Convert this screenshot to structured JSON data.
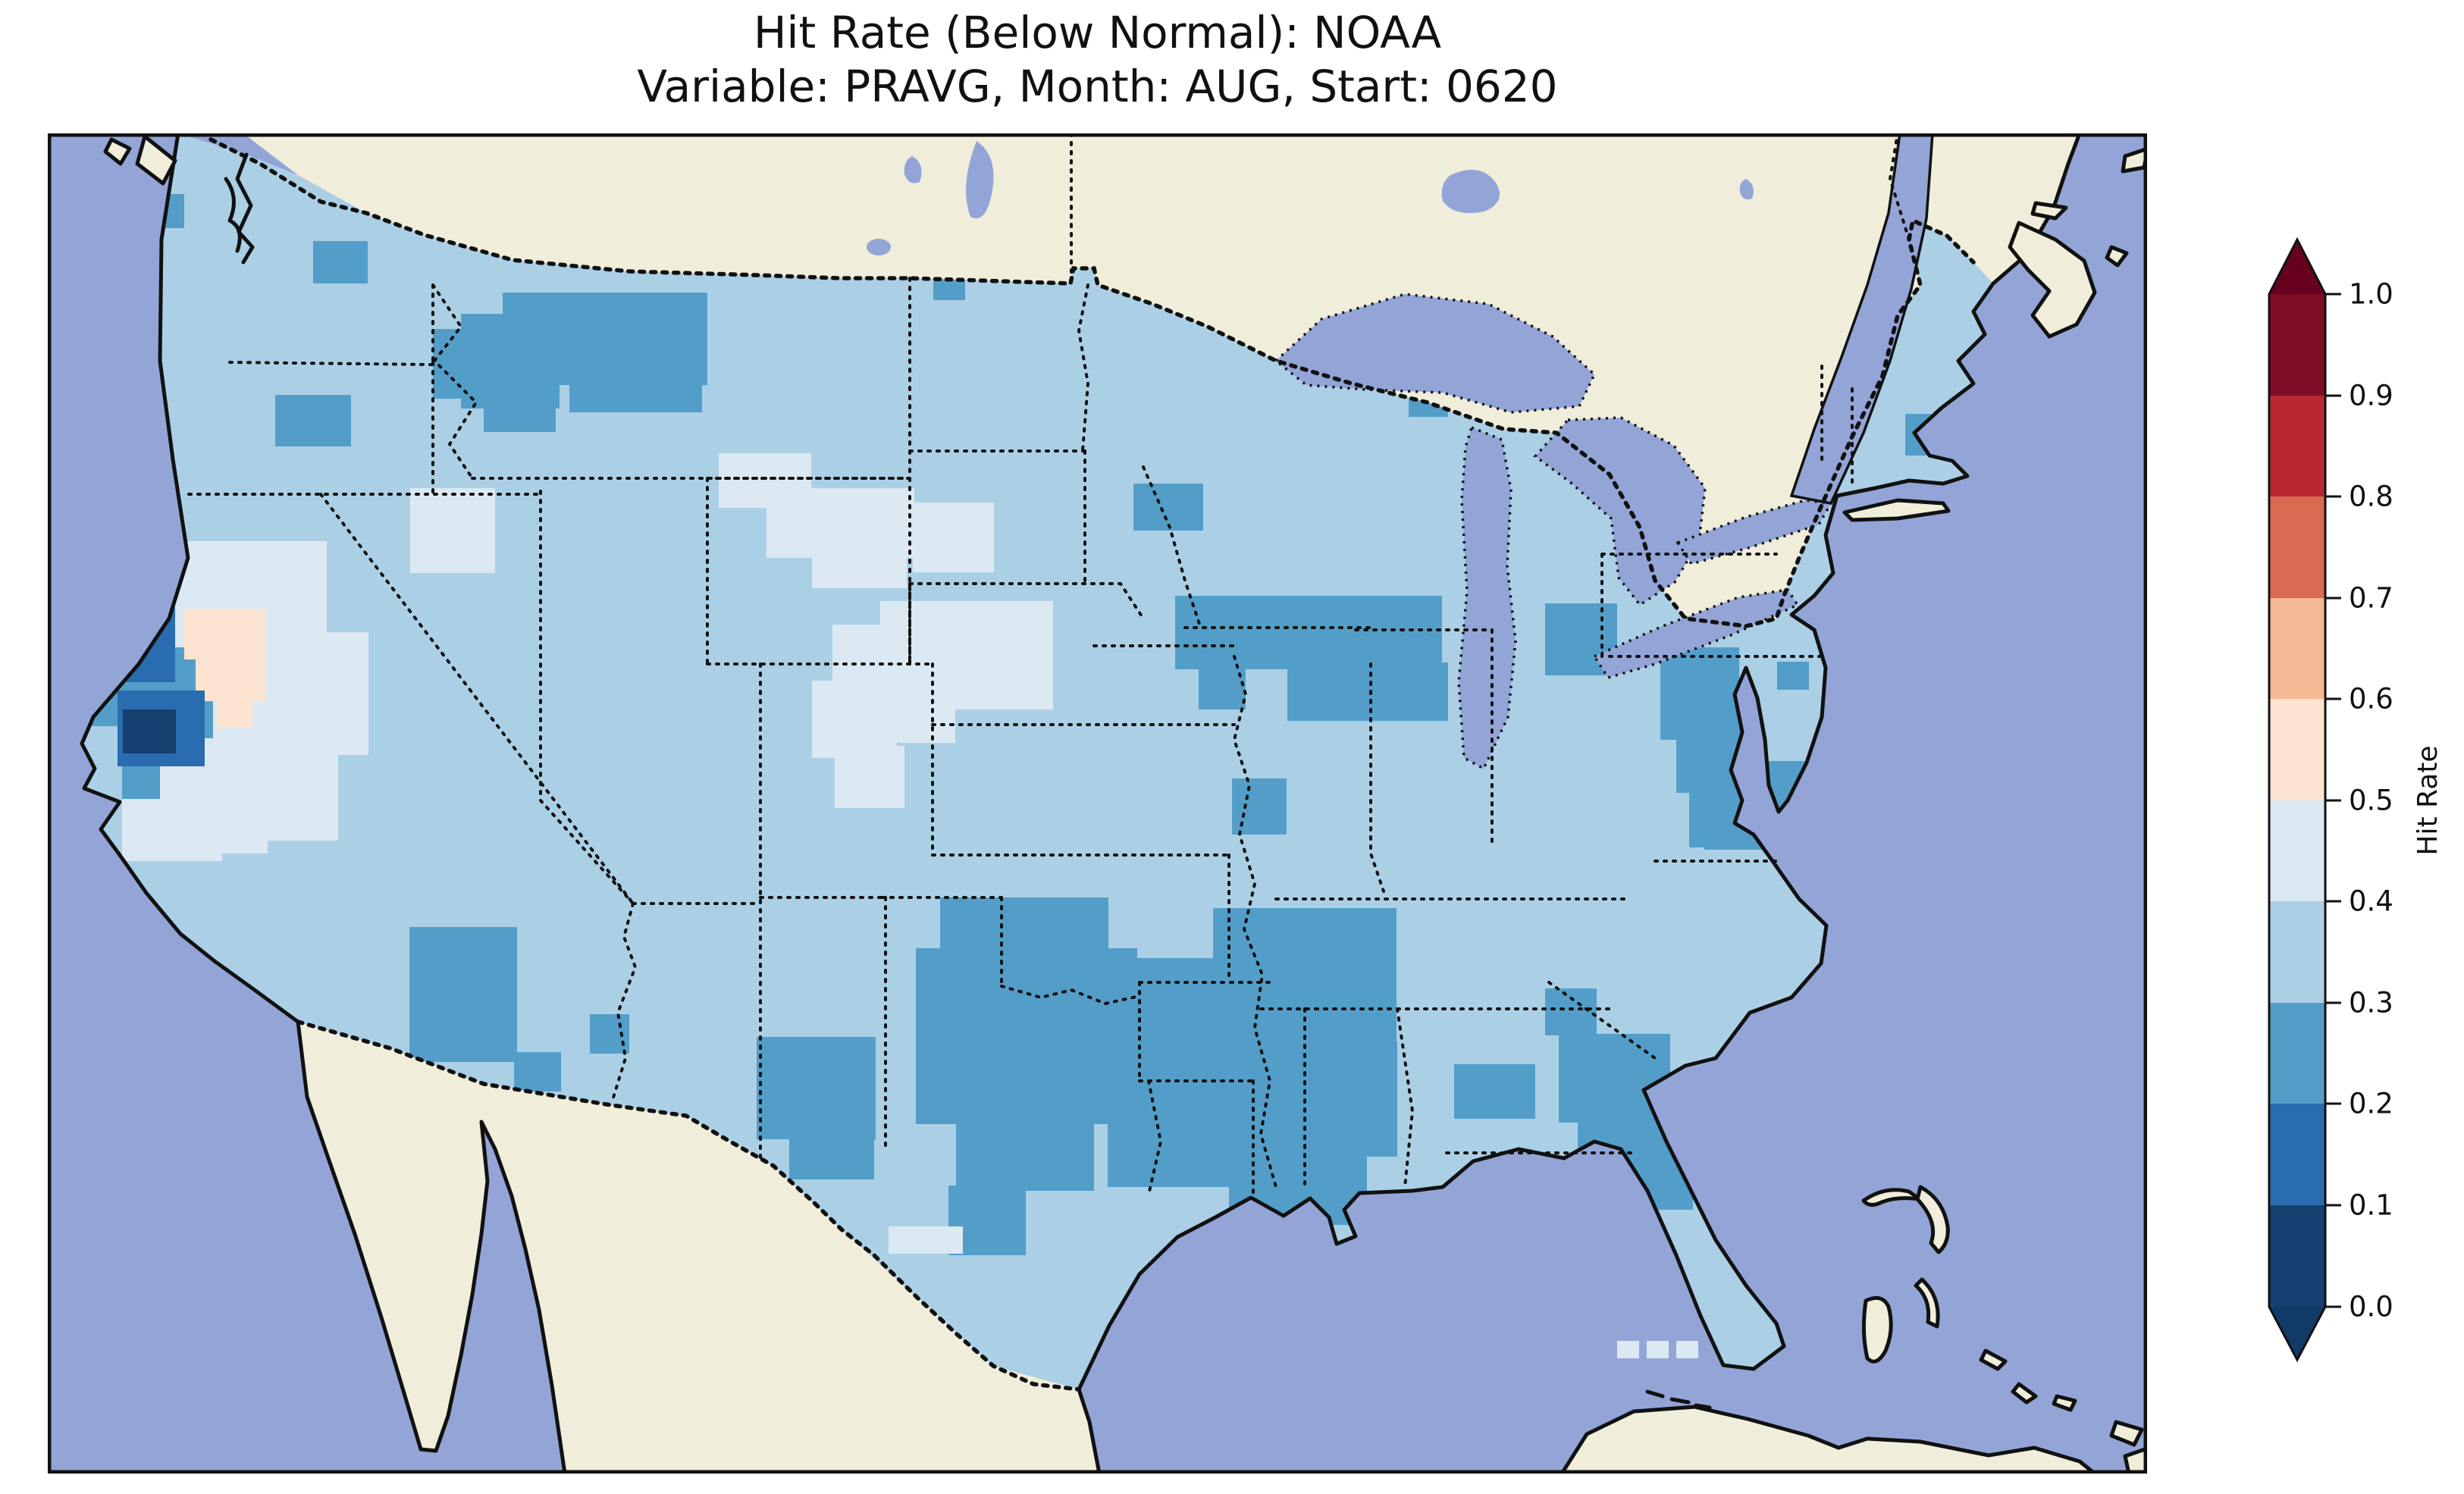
{
  "title": {
    "line1": "Hit Rate (Below Normal): NOAA",
    "line2": "Variable: PRAVG, Month: AUG, Start: 0620"
  },
  "colorbar": {
    "label": "Hit Rate",
    "extend": "both",
    "ticks": [
      "1.0",
      "0.9",
      "0.8",
      "0.7",
      "0.6",
      "0.5",
      "0.4",
      "0.3",
      "0.2",
      "0.1",
      "0.0"
    ],
    "over_color": "#67001f",
    "under_color": "#123a66",
    "bins": [
      {
        "range": "0.0-0.1",
        "color": "#16406f"
      },
      {
        "range": "0.1-0.2",
        "color": "#2a6cb0"
      },
      {
        "range": "0.2-0.3",
        "color": "#539ec9"
      },
      {
        "range": "0.3-0.4",
        "color": "#abd0e6"
      },
      {
        "range": "0.4-0.5",
        "color": "#dce9f2"
      },
      {
        "range": "0.5-0.6",
        "color": "#fbe3d0"
      },
      {
        "range": "0.6-0.7",
        "color": "#f5b894"
      },
      {
        "range": "0.7-0.8",
        "color": "#d96b53"
      },
      {
        "range": "0.8-0.9",
        "color": "#b92732"
      },
      {
        "range": "0.9-1.0",
        "color": "#7f0c24"
      }
    ]
  },
  "map": {
    "colors": {
      "ocean": "#93a5d7",
      "lake": "#93a5d7",
      "land": "#f0edda",
      "line": "#111111"
    },
    "bin_colors": [
      "#16406f",
      "#2a6cb0",
      "#539ec9",
      "#abd0e6",
      "#dce9f2",
      "#fbe3d0",
      "#f5b894",
      "#d96b53",
      "#b92732",
      "#7f0c24"
    ],
    "base_bin": 3,
    "cells": [
      [
        545,
        238,
        130,
        125,
        2
      ],
      [
        600,
        210,
        270,
        122,
        2
      ],
      [
        688,
        300,
        175,
        68,
        2
      ],
      [
        575,
        332,
        95,
        62,
        2
      ],
      [
        508,
        258,
        66,
        92,
        2
      ],
      [
        350,
        142,
        72,
        56,
        2
      ],
      [
        85,
        80,
        95,
        45,
        2
      ],
      [
        112,
        122,
        35,
        32,
        2
      ],
      [
        300,
        345,
        100,
        68,
        2
      ],
      [
        40,
        563,
        128,
        98,
        2
      ],
      [
        58,
        660,
        165,
        122,
        2
      ],
      [
        98,
        780,
        148,
        105,
        2
      ],
      [
        140,
        885,
        105,
        58,
        2
      ],
      [
        315,
        805,
        55,
        50,
        2
      ],
      [
        477,
        1047,
        142,
        178,
        2
      ],
      [
        615,
        1212,
        62,
        52,
        2
      ],
      [
        715,
        1162,
        52,
        52,
        2
      ],
      [
        935,
        1192,
        157,
        135,
        2
      ],
      [
        978,
        1318,
        112,
        62,
        2
      ],
      [
        1177,
        1008,
        222,
        72,
        2
      ],
      [
        1145,
        1075,
        292,
        232,
        2
      ],
      [
        1198,
        1303,
        182,
        92,
        2
      ],
      [
        1188,
        1388,
        102,
        92,
        2
      ],
      [
        1395,
        1088,
        112,
        182,
        2
      ],
      [
        1387,
        1088,
        162,
        162,
        2
      ],
      [
        1398,
        1248,
        192,
        142,
        2
      ],
      [
        1537,
        1022,
        242,
        182,
        2
      ],
      [
        1548,
        1198,
        232,
        152,
        2
      ],
      [
        1558,
        1348,
        182,
        92,
        2
      ],
      [
        1855,
        1228,
        107,
        72,
        2
      ],
      [
        1993,
        1188,
        147,
        117,
        2
      ],
      [
        2018,
        1293,
        152,
        127,
        2
      ],
      [
        2060,
        1324,
        70,
        66,
        2
      ],
      [
        1975,
        1128,
        68,
        62,
        2
      ],
      [
        1487,
        610,
        352,
        97,
        2
      ],
      [
        1635,
        698,
        212,
        77,
        2
      ],
      [
        1518,
        698,
        62,
        62,
        2
      ],
      [
        1432,
        462,
        92,
        62,
        2
      ],
      [
        1795,
        328,
        52,
        46,
        2
      ],
      [
        1168,
        180,
        42,
        40,
        2
      ],
      [
        1562,
        851,
        72,
        74,
        2
      ],
      [
        1975,
        620,
        95,
        95,
        2
      ],
      [
        2270,
        420,
        55,
        55,
        2
      ],
      [
        2320,
        388,
        42,
        45,
        2
      ],
      [
        2450,
        370,
        40,
        55,
        2
      ],
      [
        2127,
        678,
        104,
        122,
        2
      ],
      [
        2148,
        738,
        100,
        132,
        2
      ],
      [
        2165,
        862,
        85,
        80,
        2
      ],
      [
        2185,
        828,
        162,
        117,
        2
      ],
      [
        2270,
        860,
        80,
        85,
        2
      ],
      [
        2281,
        697,
        42,
        37,
        2
      ],
      [
        168,
        538,
        200,
        140,
        4
      ],
      [
        218,
        658,
        205,
        162,
        4
      ],
      [
        148,
        798,
        142,
        152,
        4
      ],
      [
        258,
        808,
        125,
        125,
        4
      ],
      [
        98,
        878,
        132,
        82,
        4
      ],
      [
        478,
        468,
        112,
        112,
        4
      ],
      [
        885,
        422,
        122,
        72,
        4
      ],
      [
        948,
        468,
        195,
        92,
        4
      ],
      [
        1008,
        538,
        125,
        62,
        4
      ],
      [
        1141,
        487,
        107,
        92,
        4
      ],
      [
        1035,
        648,
        122,
        97,
        4
      ],
      [
        1098,
        617,
        228,
        102,
        4
      ],
      [
        1158,
        698,
        168,
        62,
        4
      ],
      [
        1008,
        722,
        112,
        102,
        4
      ],
      [
        1038,
        808,
        92,
        82,
        4
      ],
      [
        1095,
        742,
        102,
        62,
        4
      ],
      [
        1133,
        682,
        37,
        117,
        4
      ],
      [
        1109,
        1442,
        98,
        36,
        4
      ],
      [
        180,
        627,
        107,
        67,
        5
      ],
      [
        195,
        692,
        92,
        57,
        5
      ],
      [
        223,
        747,
        47,
        37,
        5
      ],
      [
        48,
        626,
        120,
        98,
        1
      ],
      [
        92,
        735,
        115,
        100,
        1
      ],
      [
        76,
        668,
        36,
        34,
        0
      ],
      [
        99,
        760,
        70,
        58,
        0
      ],
      [
        2070,
        1593,
        29,
        23,
        4,
        1
      ],
      [
        2109,
        1593,
        29,
        23,
        4,
        1
      ],
      [
        2148,
        1593,
        29,
        23,
        4,
        1
      ]
    ]
  },
  "chart_data": {
    "type": "heatmap",
    "title": "Hit Rate (Below Normal): NOAA",
    "subtitle": "Variable: PRAVG, Month: AUG, Start: 0620",
    "source": "NOAA",
    "metric": "Hit Rate (Below Normal)",
    "variable": "PRAVG",
    "month": "AUG",
    "start": "0620",
    "geography": "Contiguous United States (gridded ~0.5 deg cells), surrounding Canada/Mexico/ocean shown without data",
    "colorbar": {
      "label": "Hit Rate",
      "range": [
        0.0,
        1.0
      ],
      "bin_size": 0.1,
      "extend": "both",
      "colormap": "discrete RdBu-style: dark blue low (0.0) through white to dark red high (1.0)"
    },
    "base_value": "0.3-0.4 over most of CONUS",
    "regions": [
      {
        "area": "Most of CONUS (background)",
        "hit_rate": "0.3-0.4"
      },
      {
        "area": "Montana / Idaho panhandle blob",
        "hit_rate": "0.2-0.3"
      },
      {
        "area": "Central Washington cell",
        "hit_rate": "0.2-0.3"
      },
      {
        "area": "Central Oregon cell",
        "hit_rate": "0.2-0.3"
      },
      {
        "area": "Northern California interior",
        "hit_rate": "0.1-0.2"
      },
      {
        "area": "Sacramento Valley, California (two cells)",
        "hit_rate": "0.0-0.1"
      },
      {
        "area": "Western Nevada patch",
        "hit_rate": "0.5-0.6"
      },
      {
        "area": "Great Basin (Nevada / Utah / southern Idaho)",
        "hit_rate": "0.4-0.5"
      },
      {
        "area": "Wyoming",
        "hit_rate": "0.4-0.5"
      },
      {
        "area": "Nebraska / northern Kansas",
        "hit_rate": "0.4-0.5"
      },
      {
        "area": "Southeastern Arizona / SW New Mexico",
        "hit_rate": "0.2-0.3"
      },
      {
        "area": "West Texas (Big Bend)",
        "hit_rate": "0.2-0.3"
      },
      {
        "area": "Central and East Texas",
        "hit_rate": "0.2-0.3"
      },
      {
        "area": "Texas Gulf Coast strip",
        "hit_rate": "0.2-0.3"
      },
      {
        "area": "Louisiana / Mississippi / western Alabama",
        "hit_rate": "0.2-0.3"
      },
      {
        "area": "Iowa / northern Illinois band",
        "hit_rate": "0.2-0.3"
      },
      {
        "area": "Northeast Missouri cell",
        "hit_rate": "0.2-0.3"
      },
      {
        "area": "Central Ohio",
        "hit_rate": "0.2-0.3"
      },
      {
        "area": "Upstate New York / New England coastal cells",
        "hit_rate": "0.2-0.3"
      },
      {
        "area": "Virginia / Chesapeake Bay region",
        "hit_rate": "0.2-0.3"
      },
      {
        "area": "Northeastern North Carolina",
        "hit_rate": "0.2-0.3"
      },
      {
        "area": "South Georgia cell",
        "hit_rate": "0.2-0.3"
      },
      {
        "area": "North Florida patch",
        "hit_rate": "0.2-0.3"
      },
      {
        "area": "Minnesota - North Dakota border cell",
        "hit_rate": "0.2-0.3"
      },
      {
        "area": "Three offshore cells SW of Florida Big Bend",
        "hit_rate": "0.4-0.5"
      }
    ]
  }
}
